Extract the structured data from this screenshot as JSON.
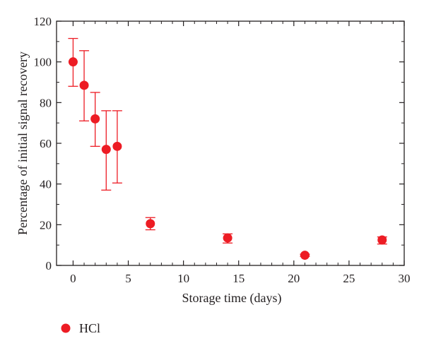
{
  "chart_data": {
    "type": "scatter",
    "xlabel": "Storage time (days)",
    "ylabel": "Percentage of initial signal recovery",
    "xlim": [
      -1.5,
      30
    ],
    "ylim": [
      0,
      120
    ],
    "xticks": [
      0,
      5,
      10,
      15,
      20,
      25,
      30
    ],
    "yticks": [
      0,
      20,
      40,
      60,
      80,
      100,
      120
    ],
    "grid": false,
    "legend_position": "bottom-left",
    "series": [
      {
        "name": "HCl",
        "color": "#ed1c24",
        "marker": "circle",
        "points": [
          {
            "x": 0,
            "y": 100,
            "err_low": 88,
            "err_high": 111.5
          },
          {
            "x": 1,
            "y": 88.5,
            "err_low": 71,
            "err_high": 105.5
          },
          {
            "x": 2,
            "y": 72,
            "err_low": 58.5,
            "err_high": 85
          },
          {
            "x": 3,
            "y": 57,
            "err_low": 37,
            "err_high": 76
          },
          {
            "x": 4,
            "y": 58.5,
            "err_low": 40.5,
            "err_high": 76
          },
          {
            "x": 7,
            "y": 20.5,
            "err_low": 17.5,
            "err_high": 23.5
          },
          {
            "x": 14,
            "y": 13.5,
            "err_low": 11,
            "err_high": 15.5
          },
          {
            "x": 21,
            "y": 5,
            "err_low": 4.5,
            "err_high": 5.5
          },
          {
            "x": 28,
            "y": 12.5,
            "err_low": 10.5,
            "err_high": 14
          }
        ]
      }
    ]
  }
}
